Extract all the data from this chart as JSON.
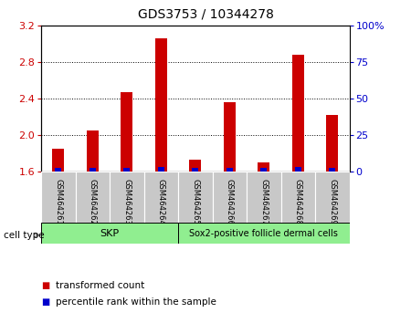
{
  "title": "GDS3753 / 10344278",
  "samples": [
    "GSM464261",
    "GSM464262",
    "GSM464263",
    "GSM464264",
    "GSM464265",
    "GSM464266",
    "GSM464267",
    "GSM464268",
    "GSM464269"
  ],
  "red_values": [
    1.85,
    2.05,
    2.47,
    3.06,
    1.73,
    2.36,
    1.7,
    2.88,
    2.22
  ],
  "blue_percentile": [
    2,
    2,
    2,
    3,
    2,
    2,
    2,
    3,
    2
  ],
  "ylim_left": [
    1.6,
    3.2
  ],
  "ylim_right": [
    0,
    100
  ],
  "left_ticks": [
    1.6,
    2.0,
    2.4,
    2.8,
    3.2
  ],
  "right_ticks": [
    0,
    25,
    50,
    75,
    100
  ],
  "right_tick_labels": [
    "0",
    "25",
    "50",
    "75",
    "100%"
  ],
  "skp_label": "SKP",
  "sox2_label": "Sox2-positive follicle dermal cells",
  "skp_count": 4,
  "sox2_count": 5,
  "cell_type_label": "cell type",
  "legend_red_label": "transformed count",
  "legend_blue_label": "percentile rank within the sample",
  "bar_color_red": "#CC0000",
  "bar_color_blue": "#0000CC",
  "bar_width": 0.35,
  "blue_bar_width": 0.18,
  "background_color": "#ffffff",
  "group_color": "#90EE90",
  "sample_box_color": "#C8C8C8",
  "base_value": 1.6,
  "title_fontsize": 10,
  "tick_fontsize": 8,
  "label_fontsize": 7.5,
  "legend_fontsize": 7.5
}
